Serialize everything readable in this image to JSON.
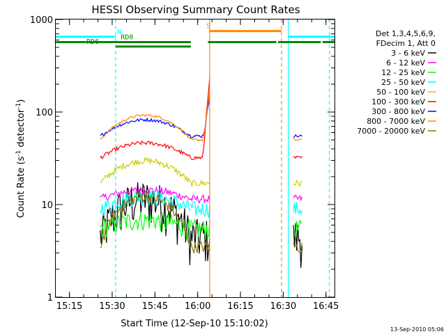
{
  "chart_data": {
    "type": "line",
    "title": "HESSI Observing Summary Count Rates",
    "xlabel": "Start Time (12-Sep-10 15:10:02)",
    "ylabel_main": "Count Rate (s",
    "ylabel_sup1": "-1",
    "ylabel_mid": " detector",
    "ylabel_sup2": "-1",
    "ylabel_end": ")",
    "yscale": "log",
    "ylim": [
      1,
      1000
    ],
    "xlim_minutes": [
      15.17,
      16.8
    ],
    "x_ticks": [
      {
        "value": 15.25,
        "label": "15:15"
      },
      {
        "value": 15.5,
        "label": "15:30"
      },
      {
        "value": 15.75,
        "label": "15:45"
      },
      {
        "value": 16.0,
        "label": "16:00"
      },
      {
        "value": 16.25,
        "label": "16:15"
      },
      {
        "value": 16.5,
        "label": "16:30"
      },
      {
        "value": 16.75,
        "label": "16:45"
      }
    ],
    "y_ticks": [
      {
        "value": 1,
        "label": "1"
      },
      {
        "value": 10,
        "label": "10"
      },
      {
        "value": 100,
        "label": "100"
      },
      {
        "value": 1000,
        "label": "1000"
      }
    ],
    "legend_header": [
      "Det 1,3,4,5,6,9,",
      "FDecim 1, Att 0"
    ],
    "series": [
      {
        "name": "3 - 6 keV",
        "color": "#000000",
        "level": 4.5,
        "bump": 2.6,
        "noise": 0.55,
        "spike": 0
      },
      {
        "name": "6 - 12 keV",
        "color": "#ff00ff",
        "level": 11.5,
        "bump": 1.25,
        "noise": 0.1,
        "spike": 0
      },
      {
        "name": "12 - 25 keV",
        "color": "#00ff00",
        "level": 5.5,
        "bump": 1.25,
        "noise": 0.25,
        "spike": 0
      },
      {
        "name": "25 - 50 keV",
        "color": "#00ffff",
        "level": 9.0,
        "bump": 1.35,
        "noise": 0.2,
        "spike": 0
      },
      {
        "name": "50 - 100 keV",
        "color": "#cccc00",
        "level": 17.0,
        "bump": 1.75,
        "noise": 0.08,
        "spike": 0
      },
      {
        "name": "100 - 300 keV",
        "color": "#ff0000",
        "level": 32.0,
        "bump": 1.45,
        "noise": 0.05,
        "spike": 230
      },
      {
        "name": "300 - 800 keV",
        "color": "#0000ff",
        "level": 55.0,
        "bump": 1.5,
        "noise": 0.04,
        "spike": 150
      },
      {
        "name": "800 - 7000 keV",
        "color": "#ff8800",
        "level": 50.0,
        "bump": 1.85,
        "noise": 0.03,
        "spike": 170
      },
      {
        "name": "7000 - 20000 keV",
        "color": "#887700",
        "level": 3.5,
        "bump": 3.5,
        "noise": 0.15,
        "spike": 0
      }
    ],
    "data_intervals": [
      {
        "start": 15.43,
        "end": 15.96
      },
      {
        "start": 15.96,
        "end": 16.07
      },
      {
        "start": 16.56,
        "end": 16.61
      }
    ],
    "flags": [
      {
        "label": "N",
        "color": "#00ffff",
        "level": 650,
        "segments": [
          [
            15.17,
            15.52
          ],
          [
            16.53,
            16.8
          ]
        ],
        "label_at": 15.53
      },
      {
        "label": "RD0",
        "color": "#008800",
        "level": 570,
        "segments": [
          [
            15.17,
            15.96
          ],
          [
            16.06,
            16.46
          ],
          [
            16.47,
            16.72
          ],
          [
            16.73,
            16.8
          ]
        ],
        "label_at": 15.55
      },
      {
        "label": "RD6",
        "color": "#008800",
        "level": 510,
        "segments": [
          [
            15.52,
            15.96
          ]
        ],
        "label_at": 15.35
      },
      {
        "label": "S",
        "color": "#ff8800",
        "level": 750,
        "segments": [
          [
            16.07,
            16.49
          ]
        ],
        "label_at": 16.05
      }
    ],
    "vlines": [
      {
        "x": 15.52,
        "color": "#00ffff",
        "dashed": true
      },
      {
        "x": 16.07,
        "color": "#ff8800",
        "dashed": false
      },
      {
        "x": 16.49,
        "color": "#ff8800",
        "dashed": true
      },
      {
        "x": 16.53,
        "color": "#00ffff",
        "dashed": false
      },
      {
        "x": 16.77,
        "color": "#00ffff",
        "dashed": true
      }
    ],
    "footer": "13-Sep-2010 05:06"
  }
}
